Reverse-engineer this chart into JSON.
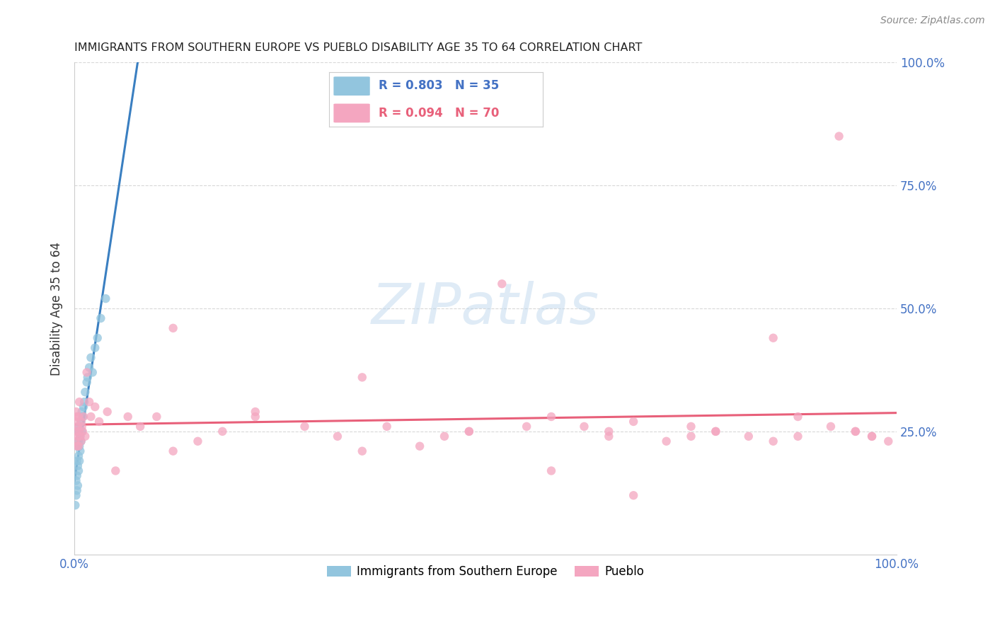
{
  "title": "IMMIGRANTS FROM SOUTHERN EUROPE VS PUEBLO DISABILITY AGE 35 TO 64 CORRELATION CHART",
  "source": "Source: ZipAtlas.com",
  "ylabel": "Disability Age 35 to 64",
  "legend1_label": "Immigrants from Southern Europe",
  "legend2_label": "Pueblo",
  "R1": 0.803,
  "N1": 35,
  "R2": 0.094,
  "N2": 70,
  "blue_color": "#92c5de",
  "pink_color": "#f4a6c0",
  "blue_line_color": "#3a7fc1",
  "pink_line_color": "#e8607a",
  "watermark_text": "ZIPatlas",
  "watermark_color": "#b8d4ec",
  "blue_x": [
    0.001,
    0.002,
    0.002,
    0.003,
    0.003,
    0.003,
    0.004,
    0.004,
    0.004,
    0.005,
    0.005,
    0.005,
    0.005,
    0.006,
    0.006,
    0.006,
    0.007,
    0.007,
    0.008,
    0.008,
    0.009,
    0.009,
    0.01,
    0.011,
    0.012,
    0.013,
    0.015,
    0.016,
    0.018,
    0.02,
    0.022,
    0.025,
    0.028,
    0.032,
    0.038
  ],
  "blue_y": [
    0.1,
    0.12,
    0.15,
    0.13,
    0.16,
    0.19,
    0.14,
    0.18,
    0.22,
    0.17,
    0.2,
    0.23,
    0.25,
    0.19,
    0.22,
    0.26,
    0.21,
    0.24,
    0.23,
    0.27,
    0.25,
    0.29,
    0.28,
    0.3,
    0.31,
    0.33,
    0.35,
    0.36,
    0.38,
    0.4,
    0.37,
    0.42,
    0.44,
    0.48,
    0.52
  ],
  "pink_x": [
    0.001,
    0.001,
    0.002,
    0.002,
    0.003,
    0.003,
    0.004,
    0.004,
    0.005,
    0.005,
    0.006,
    0.006,
    0.007,
    0.008,
    0.008,
    0.009,
    0.01,
    0.011,
    0.013,
    0.015,
    0.018,
    0.02,
    0.025,
    0.03,
    0.04,
    0.05,
    0.065,
    0.08,
    0.1,
    0.12,
    0.15,
    0.18,
    0.22,
    0.28,
    0.32,
    0.38,
    0.42,
    0.48,
    0.52,
    0.58,
    0.62,
    0.65,
    0.68,
    0.72,
    0.75,
    0.78,
    0.82,
    0.85,
    0.88,
    0.92,
    0.95,
    0.97,
    0.99,
    0.35,
    0.45,
    0.55,
    0.65,
    0.75,
    0.85,
    0.95,
    0.12,
    0.22,
    0.35,
    0.48,
    0.58,
    0.68,
    0.78,
    0.88,
    0.93,
    0.97
  ],
  "pink_y": [
    0.23,
    0.27,
    0.25,
    0.29,
    0.22,
    0.28,
    0.24,
    0.26,
    0.22,
    0.28,
    0.25,
    0.31,
    0.24,
    0.27,
    0.23,
    0.26,
    0.25,
    0.28,
    0.24,
    0.37,
    0.31,
    0.28,
    0.3,
    0.27,
    0.29,
    0.17,
    0.28,
    0.26,
    0.28,
    0.21,
    0.23,
    0.25,
    0.28,
    0.26,
    0.24,
    0.26,
    0.22,
    0.25,
    0.55,
    0.28,
    0.26,
    0.24,
    0.27,
    0.23,
    0.26,
    0.25,
    0.24,
    0.23,
    0.28,
    0.26,
    0.25,
    0.24,
    0.23,
    0.21,
    0.24,
    0.26,
    0.25,
    0.24,
    0.44,
    0.25,
    0.46,
    0.29,
    0.36,
    0.25,
    0.17,
    0.12,
    0.25,
    0.24,
    0.85,
    0.24
  ]
}
